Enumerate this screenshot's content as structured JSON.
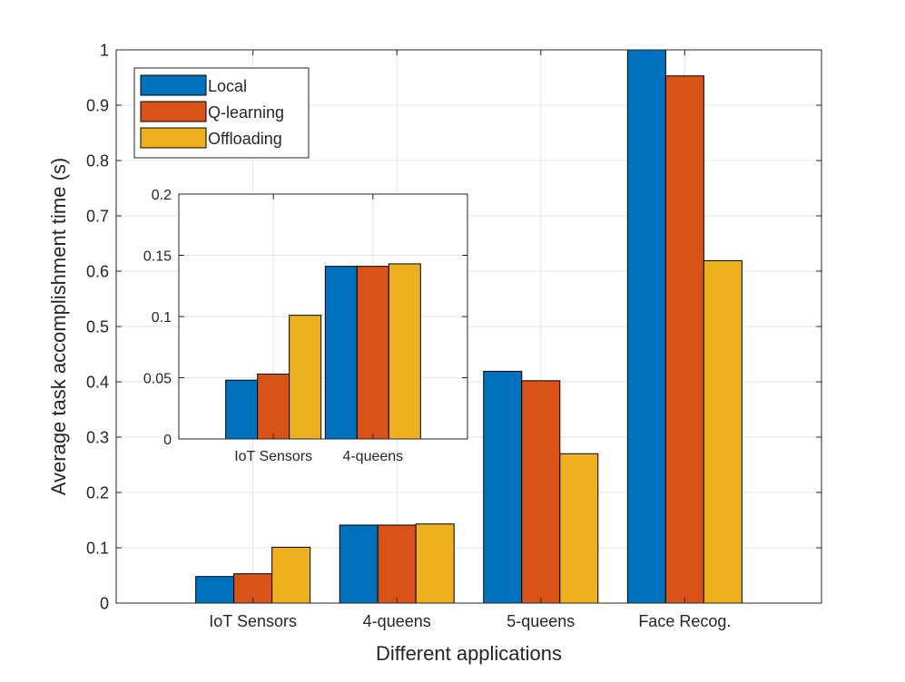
{
  "chart_data": [
    {
      "type": "bar",
      "categories": [
        "IoT Sensors",
        "4-queens",
        "5-queens",
        "Face Recog."
      ],
      "series": [
        {
          "name": "Local",
          "color": "#0072BD",
          "values": [
            0.048,
            0.141,
            0.419,
            1.0
          ]
        },
        {
          "name": "Q-learning",
          "color": "#D95319",
          "values": [
            0.053,
            0.141,
            0.402,
            0.953
          ]
        },
        {
          "name": "Offloading",
          "color": "#EDB120",
          "values": [
            0.101,
            0.143,
            0.27,
            0.619
          ]
        }
      ],
      "title": "",
      "xlabel": "Different applications",
      "ylabel": "Average task accomplishment time (s)",
      "ylim": [
        0,
        1
      ],
      "yticks": [
        "0",
        "0.1",
        "0.2",
        "0.3",
        "0.4",
        "0.5",
        "0.6",
        "0.7",
        "0.8",
        "0.9",
        "1"
      ],
      "grid": true,
      "legend": "top-left"
    },
    {
      "type": "bar",
      "categories": [
        "IoT Sensors",
        "4-queens"
      ],
      "series": [
        {
          "name": "Local",
          "color": "#0072BD",
          "values": [
            0.048,
            0.141
          ]
        },
        {
          "name": "Q-learning",
          "color": "#D95319",
          "values": [
            0.053,
            0.141
          ]
        },
        {
          "name": "Offloading",
          "color": "#EDB120",
          "values": [
            0.101,
            0.143
          ]
        }
      ],
      "title": "",
      "xlabel": "",
      "ylabel": "",
      "ylim": [
        0,
        0.2
      ],
      "yticks": [
        "0",
        "0.05",
        "0.1",
        "0.15",
        "0.2"
      ],
      "grid": true,
      "legend": "none"
    }
  ]
}
